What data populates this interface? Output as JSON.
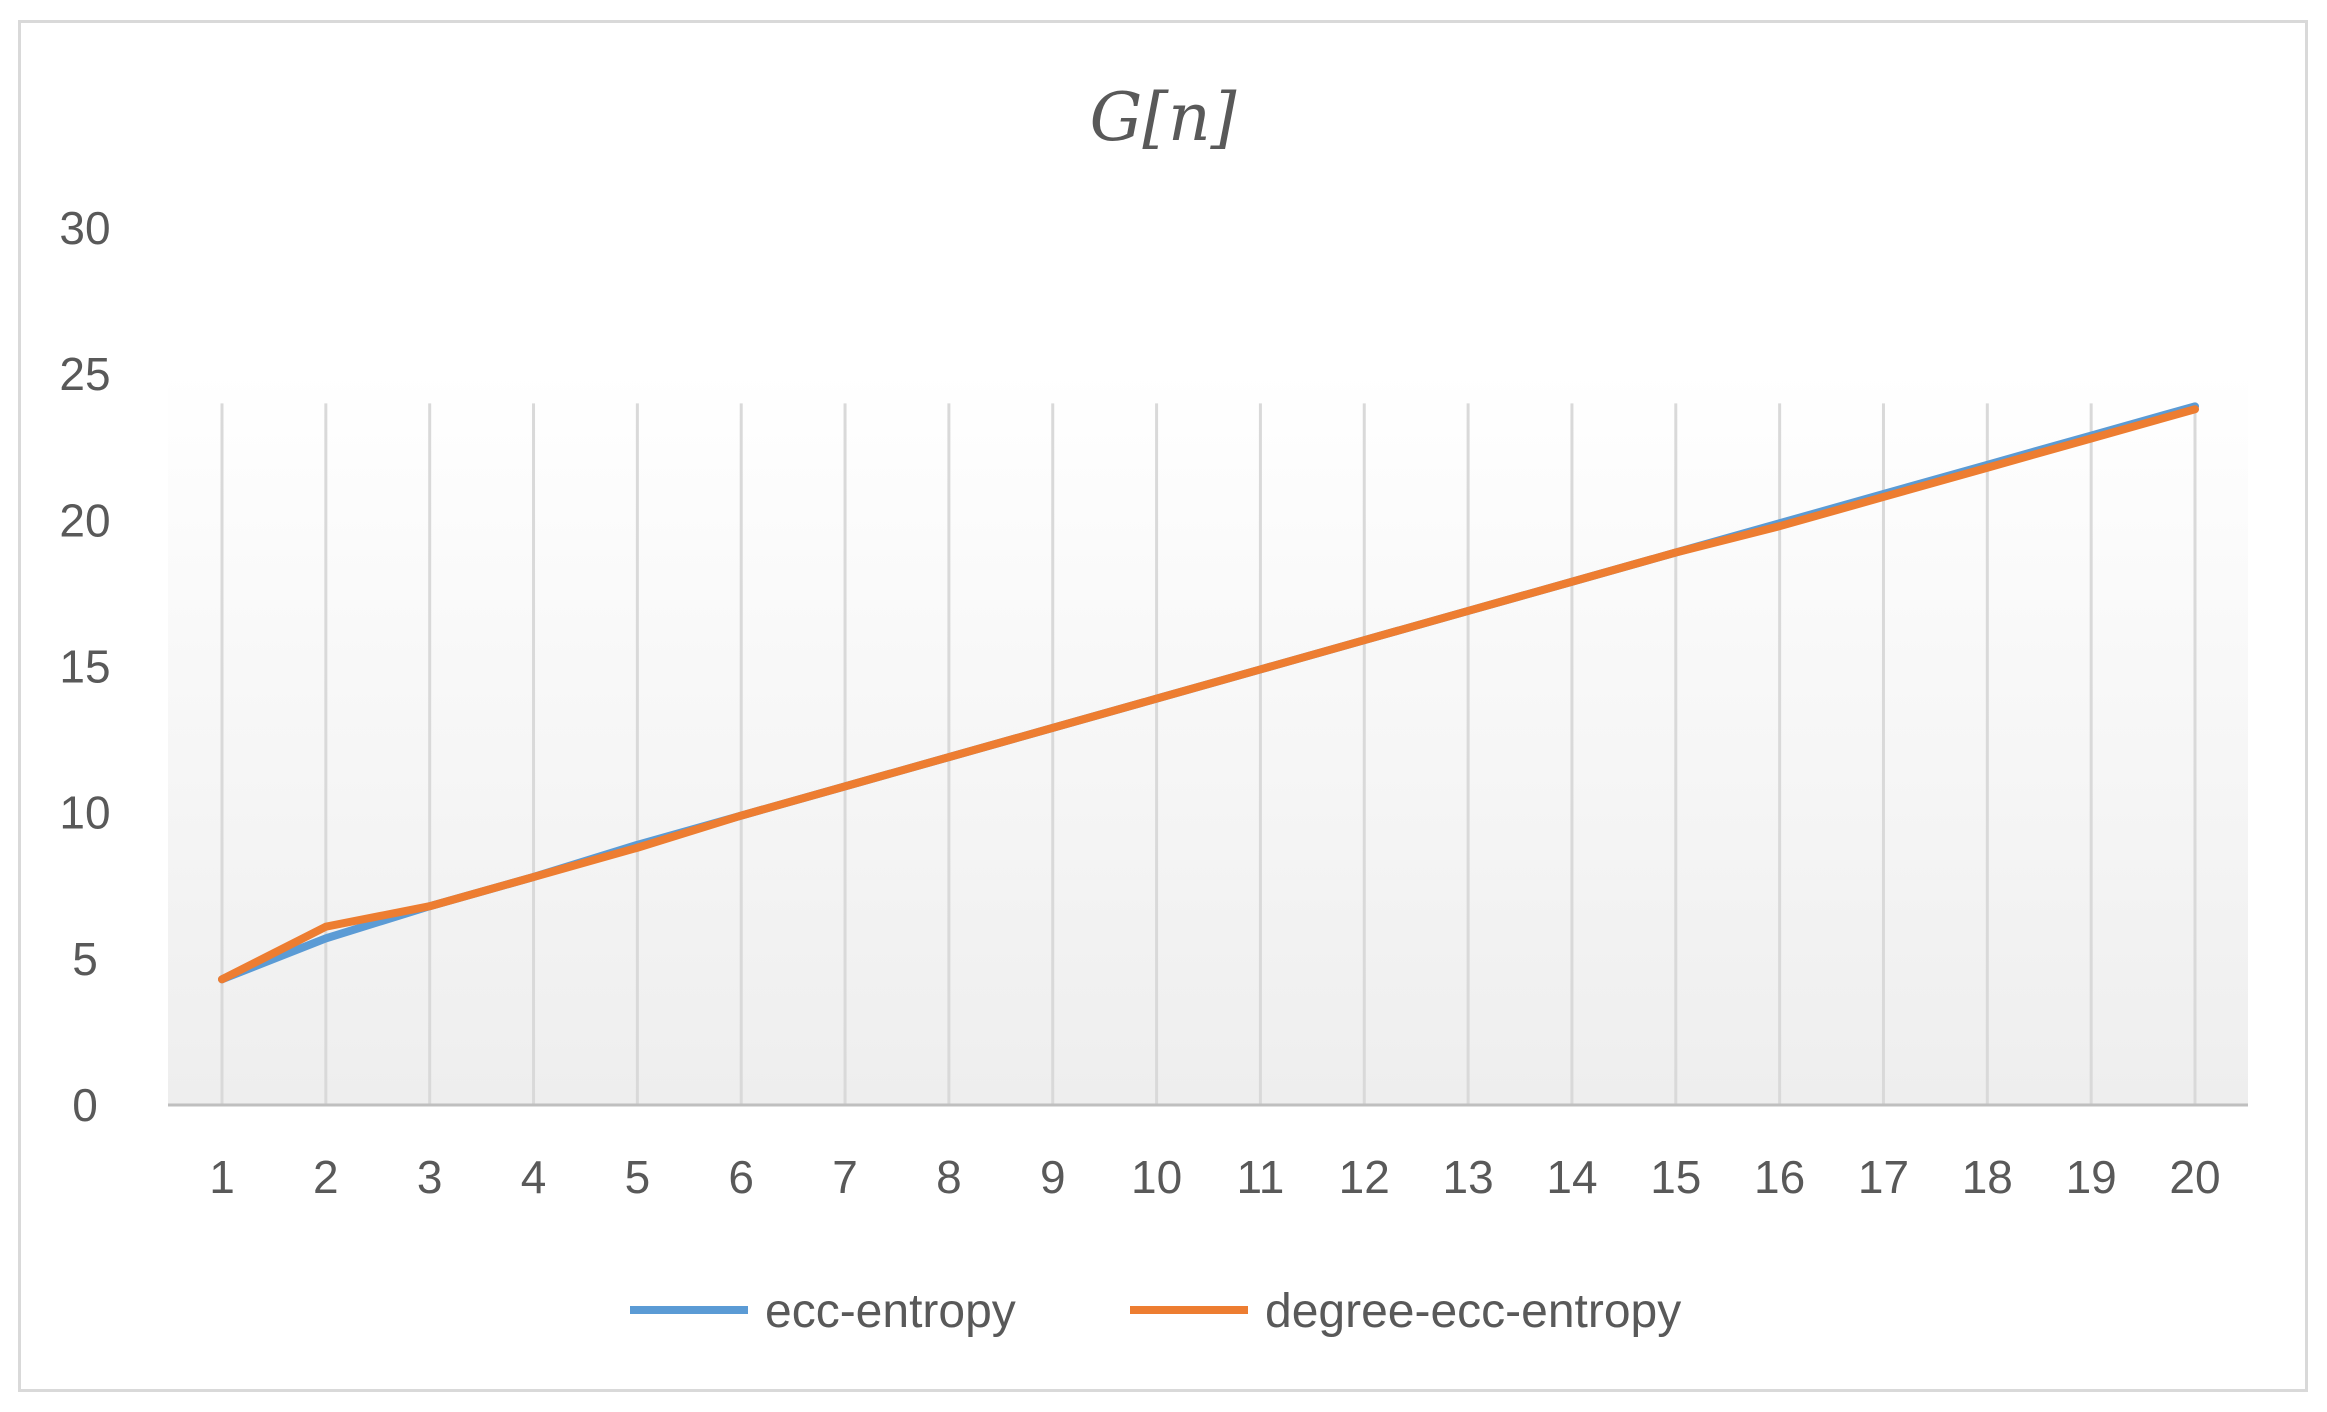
{
  "chart_data": {
    "type": "line",
    "title": "G[n]",
    "xlabel": "",
    "ylabel": "",
    "categories": [
      "1",
      "2",
      "3",
      "4",
      "5",
      "6",
      "7",
      "8",
      "9",
      "10",
      "11",
      "12",
      "13",
      "14",
      "15",
      "16",
      "17",
      "18",
      "19",
      "20"
    ],
    "ylim": [
      0,
      30
    ],
    "yticks": [
      "0",
      "5",
      "10",
      "15",
      "20",
      "25",
      "30"
    ],
    "grid": "vertical",
    "legend_position": "bottom",
    "series": [
      {
        "name": "ecc-entropy",
        "color": "#5b9bd5",
        "values": [
          4.3,
          5.7,
          6.8,
          7.8,
          8.9,
          9.9,
          10.9,
          11.9,
          12.9,
          13.9,
          14.9,
          15.9,
          16.9,
          17.9,
          18.9,
          19.9,
          20.9,
          21.9,
          22.9,
          23.9
        ]
      },
      {
        "name": "degree-ecc-entropy",
        "color": "#ed7d31",
        "values": [
          4.3,
          6.1,
          6.8,
          7.8,
          8.8,
          9.9,
          10.9,
          11.9,
          12.9,
          13.9,
          14.9,
          15.9,
          16.9,
          17.9,
          18.9,
          19.8,
          20.8,
          21.8,
          22.8,
          23.8
        ]
      }
    ]
  }
}
